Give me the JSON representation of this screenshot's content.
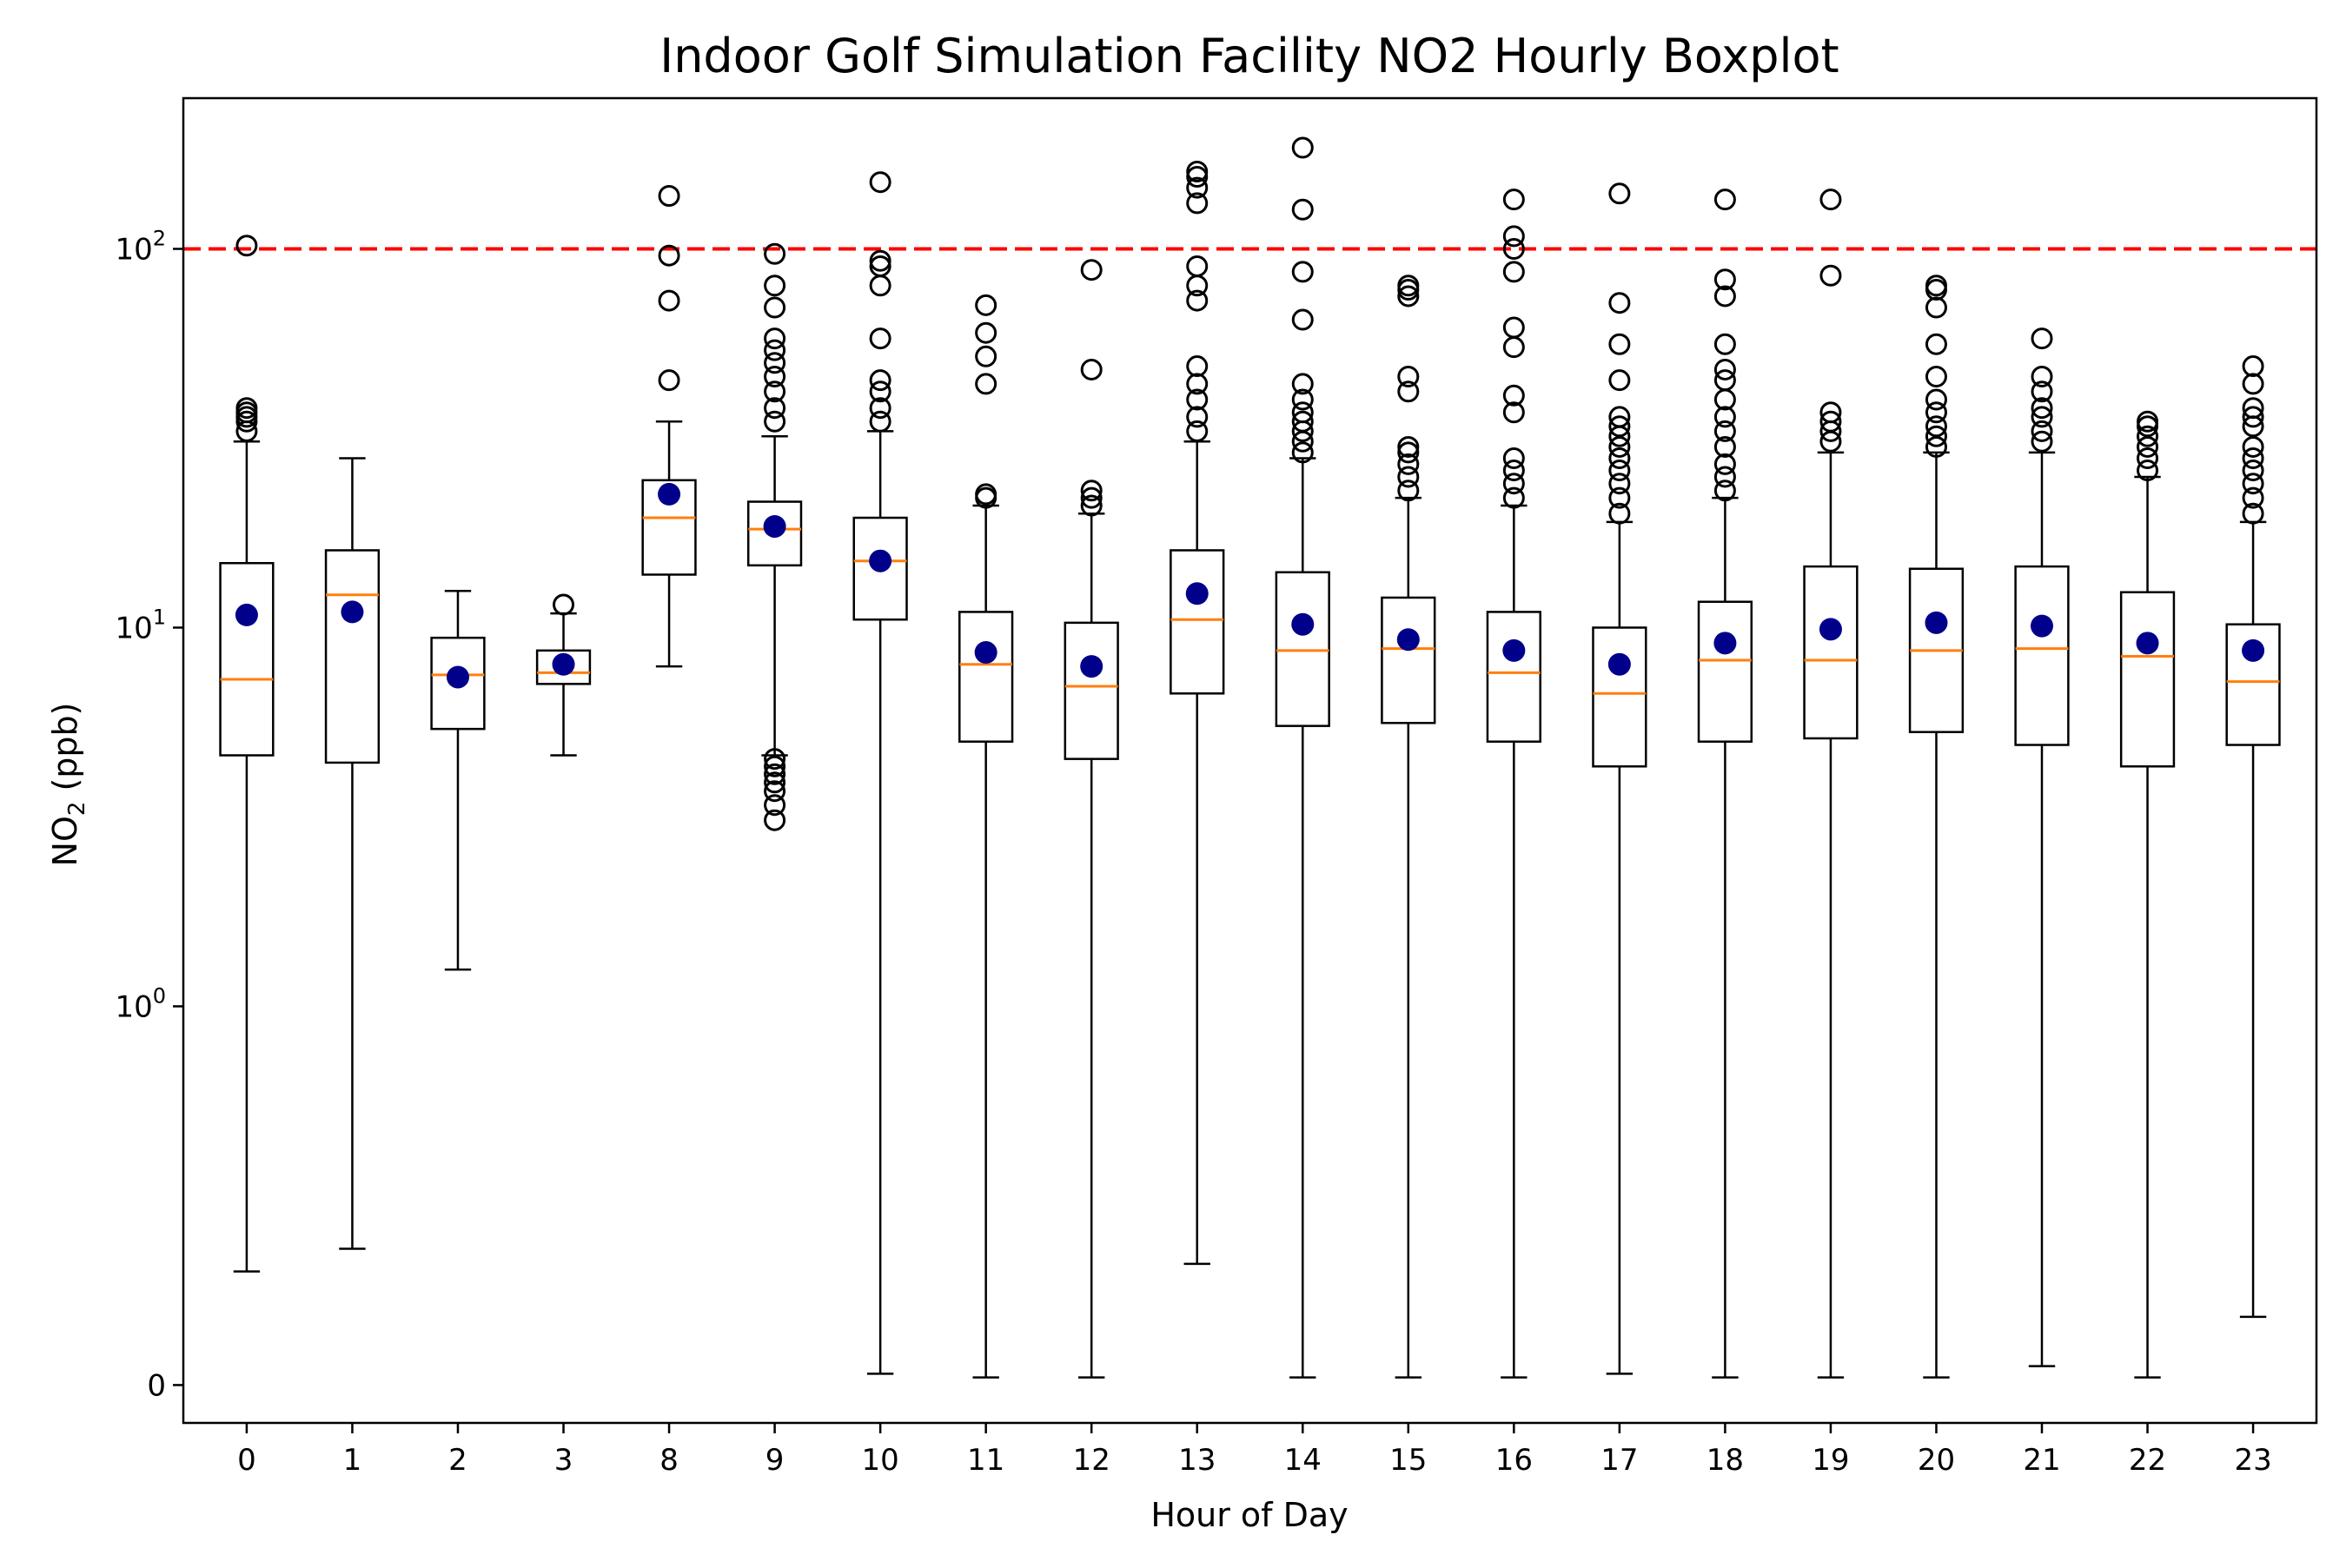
{
  "chart_data": {
    "type": "boxplot",
    "title": "Indoor Golf Simulation Facility NO2 Hourly Boxplot",
    "xlabel": "Hour of Day",
    "ylabel": "NO",
    "ylabel_sub": "2",
    "ylabel_unit": " (ppb)",
    "y_scale": "symlog",
    "y_ticks": [
      {
        "value": 0,
        "label": "0",
        "exp": ""
      },
      {
        "value": 1,
        "label": "10",
        "exp": "0"
      },
      {
        "value": 10,
        "label": "10",
        "exp": "1"
      },
      {
        "value": 100,
        "label": "10",
        "exp": "2"
      }
    ],
    "ylim": [
      -0.1,
      250
    ],
    "grid": false,
    "reference_line": {
      "value": 100,
      "color": "#ff0000",
      "style": "dashed"
    },
    "colors": {
      "box": "#000000",
      "median": "#ff7f0e",
      "mean": "#00008b",
      "flier": "#000000"
    },
    "categories": [
      "0",
      "1",
      "2",
      "3",
      "8",
      "9",
      "10",
      "11",
      "12",
      "13",
      "14",
      "15",
      "16",
      "17",
      "18",
      "19",
      "20",
      "21",
      "22",
      "23"
    ],
    "boxes": [
      {
        "hour": "0",
        "whislo": 0.3,
        "q1": 4.6,
        "median": 7.3,
        "q3": 14.8,
        "whishi": 31,
        "mean": 10.8,
        "fliers": [
          33,
          35,
          36,
          37,
          38,
          102
        ]
      },
      {
        "hour": "1",
        "whislo": 0.36,
        "q1": 4.4,
        "median": 12.2,
        "q3": 16,
        "whishi": 28,
        "mean": 11,
        "fliers": []
      },
      {
        "hour": "2",
        "whislo": 1.25,
        "q1": 5.4,
        "median": 7.5,
        "q3": 9.4,
        "whishi": 12.5,
        "mean": 7.4,
        "fliers": []
      },
      {
        "hour": "3",
        "whislo": 4.6,
        "q1": 7.1,
        "median": 7.6,
        "q3": 8.7,
        "whishi": 10.9,
        "mean": 8,
        "fliers": [
          11.5
        ]
      },
      {
        "hour": "8",
        "whislo": 7.9,
        "q1": 13.8,
        "median": 19.5,
        "q3": 24.5,
        "whishi": 35,
        "mean": 22.5,
        "fliers": [
          45,
          73,
          96,
          138
        ]
      },
      {
        "hour": "9",
        "whislo": 4.6,
        "q1": 14.6,
        "median": 18.2,
        "q3": 21.5,
        "whishi": 32,
        "mean": 18.5,
        "fliers": [
          3.1,
          3.4,
          3.7,
          3.9,
          4.1,
          4.3,
          4.5,
          35,
          38,
          42,
          46,
          50,
          54,
          58,
          70,
          80,
          97
        ]
      },
      {
        "hour": "10",
        "whislo": 0.03,
        "q1": 10.5,
        "median": 15,
        "q3": 19.5,
        "whishi": 33,
        "mean": 15,
        "fliers": [
          35,
          38,
          42,
          45,
          58,
          80,
          90,
          93,
          150
        ]
      },
      {
        "hour": "11",
        "whislo": 0.02,
        "q1": 5,
        "median": 8,
        "q3": 11,
        "whishi": 21,
        "mean": 8.6,
        "fliers": [
          22,
          22.5,
          44,
          52,
          60,
          71
        ]
      },
      {
        "hour": "12",
        "whislo": 0.02,
        "q1": 4.5,
        "median": 7,
        "q3": 10.3,
        "whishi": 20,
        "mean": 7.9,
        "fliers": [
          21,
          22,
          23,
          48,
          88
        ]
      },
      {
        "hour": "13",
        "whislo": 0.32,
        "q1": 6.7,
        "median": 10.5,
        "q3": 16,
        "whishi": 31,
        "mean": 12.3,
        "fliers": [
          33,
          36,
          40,
          44,
          49,
          73,
          80,
          90,
          132,
          145,
          155,
          160
        ]
      },
      {
        "hour": "14",
        "whislo": 0.02,
        "q1": 5.5,
        "median": 8.7,
        "q3": 14,
        "whishi": 28,
        "mean": 10.2,
        "fliers": [
          29,
          31,
          33,
          35,
          37,
          40,
          44,
          65,
          87,
          127,
          185
        ]
      },
      {
        "hour": "15",
        "whislo": 0.02,
        "q1": 5.6,
        "median": 8.8,
        "q3": 12,
        "whishi": 22,
        "mean": 9.3,
        "fliers": [
          23,
          25,
          27,
          29,
          30,
          42,
          46,
          75,
          78,
          80
        ]
      },
      {
        "hour": "16",
        "whislo": 0.02,
        "q1": 5,
        "median": 7.6,
        "q3": 11,
        "whishi": 21,
        "mean": 8.7,
        "fliers": [
          22,
          24,
          26,
          28,
          37,
          41,
          55,
          62,
          87,
          100,
          108,
          135
        ]
      },
      {
        "hour": "17",
        "whislo": 0.03,
        "q1": 4.3,
        "median": 6.7,
        "q3": 10,
        "whishi": 19,
        "mean": 8,
        "fliers": [
          20,
          22,
          24,
          26,
          28,
          30,
          32,
          34,
          36,
          45,
          56,
          72,
          140
        ]
      },
      {
        "hour": "18",
        "whislo": 0.02,
        "q1": 5,
        "median": 8.2,
        "q3": 11.7,
        "whishi": 22,
        "mean": 9.1,
        "fliers": [
          23,
          25,
          27,
          30,
          33,
          36,
          40,
          45,
          48,
          56,
          75,
          83,
          135
        ]
      },
      {
        "hour": "19",
        "whislo": 0.02,
        "q1": 5.1,
        "median": 8.2,
        "q3": 14.5,
        "whishi": 29,
        "mean": 9.9,
        "fliers": [
          31,
          33,
          35,
          37,
          85,
          135
        ]
      },
      {
        "hour": "20",
        "whislo": 0.02,
        "q1": 5.3,
        "median": 8.7,
        "q3": 14.3,
        "whishi": 29,
        "mean": 10.3,
        "fliers": [
          30,
          32,
          34,
          37,
          40,
          46,
          56,
          70,
          78,
          80
        ]
      },
      {
        "hour": "21",
        "whislo": 0.05,
        "q1": 4.9,
        "median": 8.8,
        "q3": 14.5,
        "whishi": 29,
        "mean": 10.1,
        "fliers": [
          31,
          33,
          36,
          38,
          42,
          46,
          58
        ]
      },
      {
        "hour": "22",
        "whislo": 0.02,
        "q1": 4.3,
        "median": 8.4,
        "q3": 12.4,
        "whishi": 25,
        "mean": 9.1,
        "fliers": [
          26,
          28,
          30,
          32,
          34,
          35
        ]
      },
      {
        "hour": "23",
        "whislo": 0.18,
        "q1": 4.9,
        "median": 7.2,
        "q3": 10.2,
        "whishi": 19,
        "mean": 8.7,
        "fliers": [
          20,
          22,
          24,
          26,
          28,
          30,
          34,
          36,
          38,
          44,
          49
        ]
      }
    ]
  }
}
